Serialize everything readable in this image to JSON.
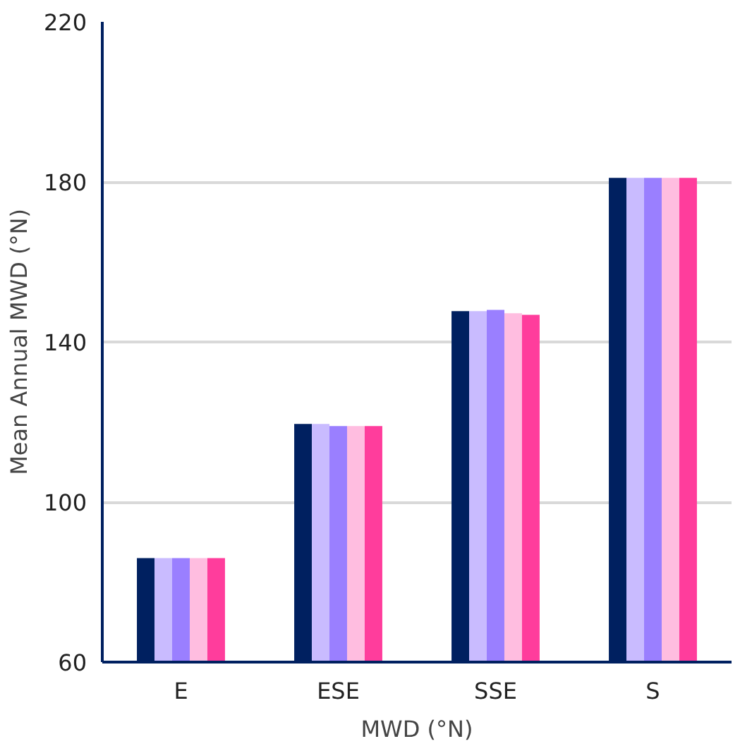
{
  "chart_data": {
    "type": "bar",
    "xlabel": "MWD (°N)",
    "ylabel": "Mean Annual MWD (°N)",
    "categories": [
      "E",
      "ESE",
      "SSE",
      "S"
    ],
    "series": [
      {
        "color": "#002060",
        "values": [
          86,
          119.5,
          147.7,
          181
        ]
      },
      {
        "color": "#c9bbff",
        "values": [
          86,
          119.5,
          147.7,
          181
        ]
      },
      {
        "color": "#9a7fff",
        "values": [
          86,
          119,
          148,
          181
        ]
      },
      {
        "color": "#ffbde0",
        "values": [
          86,
          119,
          147.2,
          181
        ]
      },
      {
        "color": "#ff3d9c",
        "values": [
          86,
          119,
          146.8,
          181
        ]
      }
    ],
    "ylim": [
      60,
      220
    ],
    "yticks": [
      60,
      100,
      140,
      180,
      220
    ],
    "grid": "y"
  }
}
